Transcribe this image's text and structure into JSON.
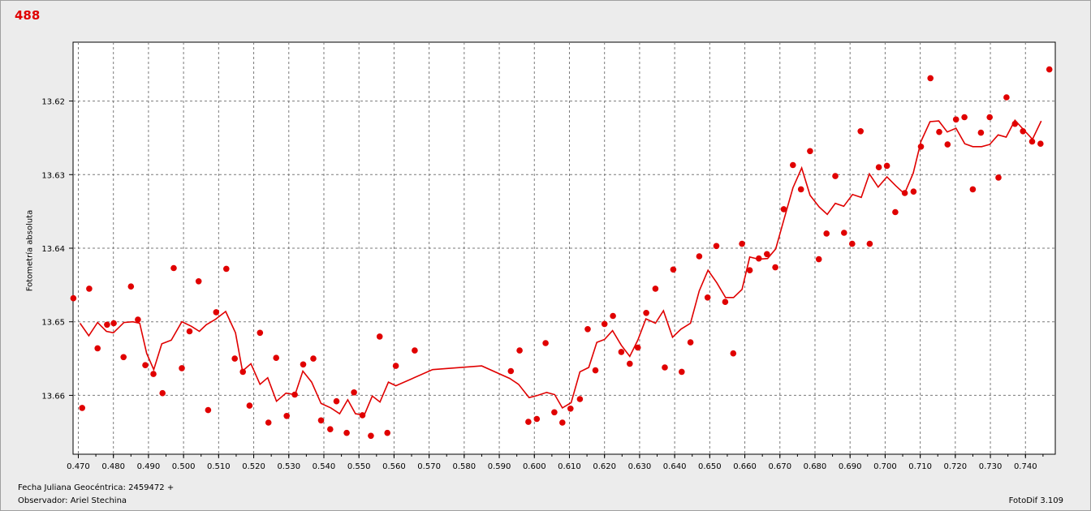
{
  "window": {
    "title_badge": "488"
  },
  "footer": {
    "date_label": "Fecha Juliana Geocéntrica: 2459472 +",
    "observer_label": "Observador: Ariel Stechina",
    "app_version": "FotoDif 3.109"
  },
  "colors": {
    "series": "#e00000",
    "grid": "#7a7a7a",
    "background": "#ececec"
  },
  "chart_data": {
    "type": "scatter",
    "title": "",
    "xlabel": "",
    "ylabel": "Fotometría absoluta",
    "xlim": [
      0.4685,
      0.7485
    ],
    "ylim": [
      13.668,
      13.612
    ],
    "y_inverted": true,
    "grid": true,
    "x_ticks": [
      "0.470",
      "0.480",
      "0.490",
      "0.500",
      "0.510",
      "0.520",
      "0.530",
      "0.540",
      "0.550",
      "0.560",
      "0.570",
      "0.580",
      "0.590",
      "0.600",
      "0.610",
      "0.620",
      "0.630",
      "0.640",
      "0.650",
      "0.660",
      "0.670",
      "0.680",
      "0.690",
      "0.700",
      "0.710",
      "0.720",
      "0.730",
      "0.740"
    ],
    "y_ticks": [
      "13.62",
      "13.63",
      "13.64",
      "13.65",
      "13.66"
    ],
    "series": [
      {
        "kind": "points",
        "points": [
          [
            0.4686,
            13.6468
          ],
          [
            0.4711,
            13.6617
          ],
          [
            0.4731,
            13.6455
          ],
          [
            0.4755,
            13.6536
          ],
          [
            0.4782,
            13.6504
          ],
          [
            0.4801,
            13.6502
          ],
          [
            0.4829,
            13.6548
          ],
          [
            0.485,
            13.6452
          ],
          [
            0.487,
            13.6497
          ],
          [
            0.4891,
            13.6559
          ],
          [
            0.4914,
            13.6571
          ],
          [
            0.494,
            13.6597
          ],
          [
            0.4972,
            13.6427
          ],
          [
            0.4995,
            13.6563
          ],
          [
            0.5017,
            13.6513
          ],
          [
            0.5043,
            13.6445
          ],
          [
            0.507,
            13.662
          ],
          [
            0.5093,
            13.6487
          ],
          [
            0.5122,
            13.6428
          ],
          [
            0.5146,
            13.655
          ],
          [
            0.5169,
            13.6568
          ],
          [
            0.5188,
            13.6614
          ],
          [
            0.5218,
            13.6515
          ],
          [
            0.5242,
            13.6637
          ],
          [
            0.5264,
            13.6549
          ],
          [
            0.5294,
            13.6628
          ],
          [
            0.5317,
            13.6599
          ],
          [
            0.5341,
            13.6558
          ],
          [
            0.537,
            13.655
          ],
          [
            0.5392,
            13.6634
          ],
          [
            0.5418,
            13.6646
          ],
          [
            0.5436,
            13.6608
          ],
          [
            0.5465,
            13.6651
          ],
          [
            0.5486,
            13.6596
          ],
          [
            0.551,
            13.6627
          ],
          [
            0.5534,
            13.6655
          ],
          [
            0.5559,
            13.652
          ],
          [
            0.5581,
            13.6651
          ],
          [
            0.5605,
            13.656
          ],
          [
            0.5659,
            13.6539
          ],
          [
            0.5933,
            13.6567
          ],
          [
            0.5958,
            13.6539
          ],
          [
            0.5983,
            13.6636
          ],
          [
            0.6007,
            13.6632
          ],
          [
            0.6032,
            13.6529
          ],
          [
            0.6057,
            13.6623
          ],
          [
            0.608,
            13.6637
          ],
          [
            0.6103,
            13.6618
          ],
          [
            0.613,
            13.6605
          ],
          [
            0.6152,
            13.651
          ],
          [
            0.6174,
            13.6566
          ],
          [
            0.62,
            13.6503
          ],
          [
            0.6224,
            13.6492
          ],
          [
            0.6248,
            13.6541
          ],
          [
            0.6272,
            13.6557
          ],
          [
            0.6295,
            13.6535
          ],
          [
            0.6319,
            13.6488
          ],
          [
            0.6345,
            13.6455
          ],
          [
            0.6372,
            13.6562
          ],
          [
            0.6396,
            13.6429
          ],
          [
            0.642,
            13.6568
          ],
          [
            0.6445,
            13.6528
          ],
          [
            0.647,
            13.6411
          ],
          [
            0.6494,
            13.6467
          ],
          [
            0.6519,
            13.6397
          ],
          [
            0.6544,
            13.6473
          ],
          [
            0.6567,
            13.6543
          ],
          [
            0.6592,
            13.6394
          ],
          [
            0.6614,
            13.643
          ],
          [
            0.664,
            13.6414
          ],
          [
            0.6663,
            13.6408
          ],
          [
            0.6687,
            13.6426
          ],
          [
            0.6711,
            13.6347
          ],
          [
            0.6737,
            13.6287
          ],
          [
            0.676,
            13.632
          ],
          [
            0.6786,
            13.6268
          ],
          [
            0.6811,
            13.6415
          ],
          [
            0.6833,
            13.638
          ],
          [
            0.6858,
            13.6302
          ],
          [
            0.6883,
            13.6379
          ],
          [
            0.6906,
            13.6394
          ],
          [
            0.693,
            13.6241
          ],
          [
            0.6956,
            13.6394
          ],
          [
            0.6982,
            13.629
          ],
          [
            0.7005,
            13.6288
          ],
          [
            0.7029,
            13.6351
          ],
          [
            0.7056,
            13.6325
          ],
          [
            0.7081,
            13.6323
          ],
          [
            0.7102,
            13.6262
          ],
          [
            0.7129,
            13.6169
          ],
          [
            0.7154,
            13.6242
          ],
          [
            0.7178,
            13.6259
          ],
          [
            0.7202,
            13.6225
          ],
          [
            0.7226,
            13.6222
          ],
          [
            0.725,
            13.632
          ],
          [
            0.7273,
            13.6243
          ],
          [
            0.7298,
            13.6222
          ],
          [
            0.7323,
            13.6304
          ],
          [
            0.7346,
            13.6195
          ],
          [
            0.737,
            13.6231
          ],
          [
            0.7393,
            13.6241
          ],
          [
            0.7419,
            13.6255
          ],
          [
            0.7443,
            13.6258
          ],
          [
            0.7468,
            13.6157
          ]
        ]
      },
      {
        "kind": "line",
        "points": [
          [
            0.4705,
            13.6502
          ],
          [
            0.473,
            13.6519
          ],
          [
            0.4755,
            13.6501
          ],
          [
            0.478,
            13.6513
          ],
          [
            0.48,
            13.6515
          ],
          [
            0.483,
            13.6501
          ],
          [
            0.4855,
            13.65
          ],
          [
            0.4875,
            13.6502
          ],
          [
            0.4895,
            13.6543
          ],
          [
            0.4915,
            13.6565
          ],
          [
            0.4938,
            13.653
          ],
          [
            0.4965,
            13.6525
          ],
          [
            0.4995,
            13.65
          ],
          [
            0.5022,
            13.6506
          ],
          [
            0.5045,
            13.6513
          ],
          [
            0.5065,
            13.6504
          ],
          [
            0.509,
            13.6497
          ],
          [
            0.512,
            13.6486
          ],
          [
            0.5148,
            13.6515
          ],
          [
            0.5168,
            13.6567
          ],
          [
            0.5192,
            13.6557
          ],
          [
            0.5218,
            13.6585
          ],
          [
            0.524,
            13.6576
          ],
          [
            0.5265,
            13.6608
          ],
          [
            0.5292,
            13.6597
          ],
          [
            0.5318,
            13.6599
          ],
          [
            0.534,
            13.6567
          ],
          [
            0.5365,
            13.6582
          ],
          [
            0.5392,
            13.6611
          ],
          [
            0.542,
            13.6617
          ],
          [
            0.5445,
            13.6625
          ],
          [
            0.5468,
            13.6606
          ],
          [
            0.549,
            13.6625
          ],
          [
            0.5515,
            13.6627
          ],
          [
            0.5538,
            13.6601
          ],
          [
            0.556,
            13.6609
          ],
          [
            0.5584,
            13.6582
          ],
          [
            0.5605,
            13.6587
          ],
          [
            0.571,
            13.6565
          ],
          [
            0.585,
            13.656
          ],
          [
            0.593,
            13.6577
          ],
          [
            0.5955,
            13.6585
          ],
          [
            0.5985,
            13.6603
          ],
          [
            0.601,
            13.66
          ],
          [
            0.6035,
            13.6596
          ],
          [
            0.6058,
            13.6599
          ],
          [
            0.608,
            13.6617
          ],
          [
            0.6105,
            13.661
          ],
          [
            0.613,
            13.6568
          ],
          [
            0.6155,
            13.6562
          ],
          [
            0.6178,
            13.6528
          ],
          [
            0.62,
            13.6524
          ],
          [
            0.6223,
            13.6512
          ],
          [
            0.6248,
            13.6532
          ],
          [
            0.6272,
            13.6547
          ],
          [
            0.6295,
            13.6525
          ],
          [
            0.6318,
            13.6496
          ],
          [
            0.6345,
            13.6502
          ],
          [
            0.6368,
            13.6485
          ],
          [
            0.6394,
            13.6521
          ],
          [
            0.6418,
            13.651
          ],
          [
            0.6445,
            13.6502
          ],
          [
            0.647,
            13.6458
          ],
          [
            0.6495,
            13.643
          ],
          [
            0.652,
            13.6447
          ],
          [
            0.6545,
            13.6467
          ],
          [
            0.6568,
            13.6467
          ],
          [
            0.6592,
            13.6456
          ],
          [
            0.6614,
            13.6412
          ],
          [
            0.664,
            13.6415
          ],
          [
            0.6665,
            13.6414
          ],
          [
            0.6688,
            13.6401
          ],
          [
            0.6712,
            13.636
          ],
          [
            0.6737,
            13.6318
          ],
          [
            0.6762,
            13.6291
          ],
          [
            0.6786,
            13.6328
          ],
          [
            0.6812,
            13.6344
          ],
          [
            0.6835,
            13.6354
          ],
          [
            0.6858,
            13.6339
          ],
          [
            0.6882,
            13.6343
          ],
          [
            0.6907,
            13.6327
          ],
          [
            0.6932,
            13.6331
          ],
          [
            0.6955,
            13.6299
          ],
          [
            0.698,
            13.6317
          ],
          [
            0.7005,
            13.6303
          ],
          [
            0.703,
            13.6315
          ],
          [
            0.7055,
            13.6326
          ],
          [
            0.708,
            13.6298
          ],
          [
            0.7102,
            13.6255
          ],
          [
            0.7128,
            13.6228
          ],
          [
            0.7153,
            13.6227
          ],
          [
            0.7177,
            13.6242
          ],
          [
            0.7202,
            13.6237
          ],
          [
            0.7227,
            13.6258
          ],
          [
            0.725,
            13.6262
          ],
          [
            0.7275,
            13.6262
          ],
          [
            0.7298,
            13.6259
          ],
          [
            0.7322,
            13.6246
          ],
          [
            0.7345,
            13.6249
          ],
          [
            0.737,
            13.6226
          ],
          [
            0.7395,
            13.6239
          ],
          [
            0.742,
            13.6252
          ],
          [
            0.7445,
            13.6227
          ]
        ]
      }
    ]
  }
}
